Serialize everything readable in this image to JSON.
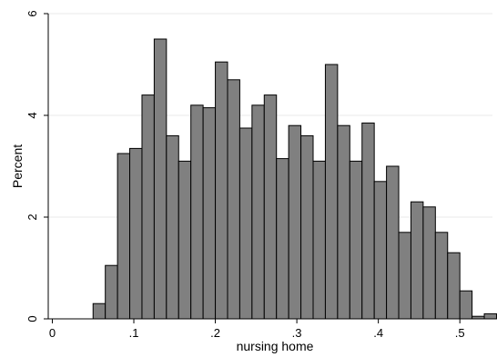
{
  "chart_data": {
    "type": "bar",
    "title": "",
    "xlabel": "nursing home",
    "ylabel": "Percent",
    "xlim": [
      -0.005,
      0.54
    ],
    "ylim": [
      0,
      6
    ],
    "grid": true,
    "bar_width": 0.015,
    "bar_fill": "#808080",
    "bar_stroke": "#000000",
    "x_ticks": [
      {
        "value": 0,
        "label": "0"
      },
      {
        "value": 0.1,
        "label": ".1"
      },
      {
        "value": 0.2,
        "label": ".2"
      },
      {
        "value": 0.3,
        "label": ".3"
      },
      {
        "value": 0.4,
        "label": ".4"
      },
      {
        "value": 0.5,
        "label": ".5"
      }
    ],
    "y_ticks": [
      {
        "value": 0,
        "label": "0"
      },
      {
        "value": 2,
        "label": "2"
      },
      {
        "value": 4,
        "label": "4"
      },
      {
        "value": 6,
        "label": "6"
      }
    ],
    "bins_start": [
      0.05,
      0.065,
      0.08,
      0.095,
      0.11,
      0.125,
      0.14,
      0.155,
      0.17,
      0.185,
      0.2,
      0.215,
      0.23,
      0.245,
      0.26,
      0.275,
      0.29,
      0.305,
      0.32,
      0.335,
      0.35,
      0.365,
      0.38,
      0.395,
      0.41,
      0.425,
      0.44,
      0.455,
      0.47,
      0.485,
      0.5,
      0.515,
      0.53
    ],
    "values": [
      0.3,
      1.05,
      3.25,
      3.35,
      4.4,
      5.5,
      3.6,
      3.1,
      4.2,
      4.15,
      5.05,
      4.7,
      3.75,
      4.2,
      4.4,
      3.15,
      3.8,
      3.6,
      3.1,
      5.0,
      3.8,
      3.1,
      3.85,
      2.7,
      3.0,
      1.7,
      2.3,
      2.2,
      1.7,
      1.3,
      0.55,
      0.05,
      0.1
    ]
  }
}
